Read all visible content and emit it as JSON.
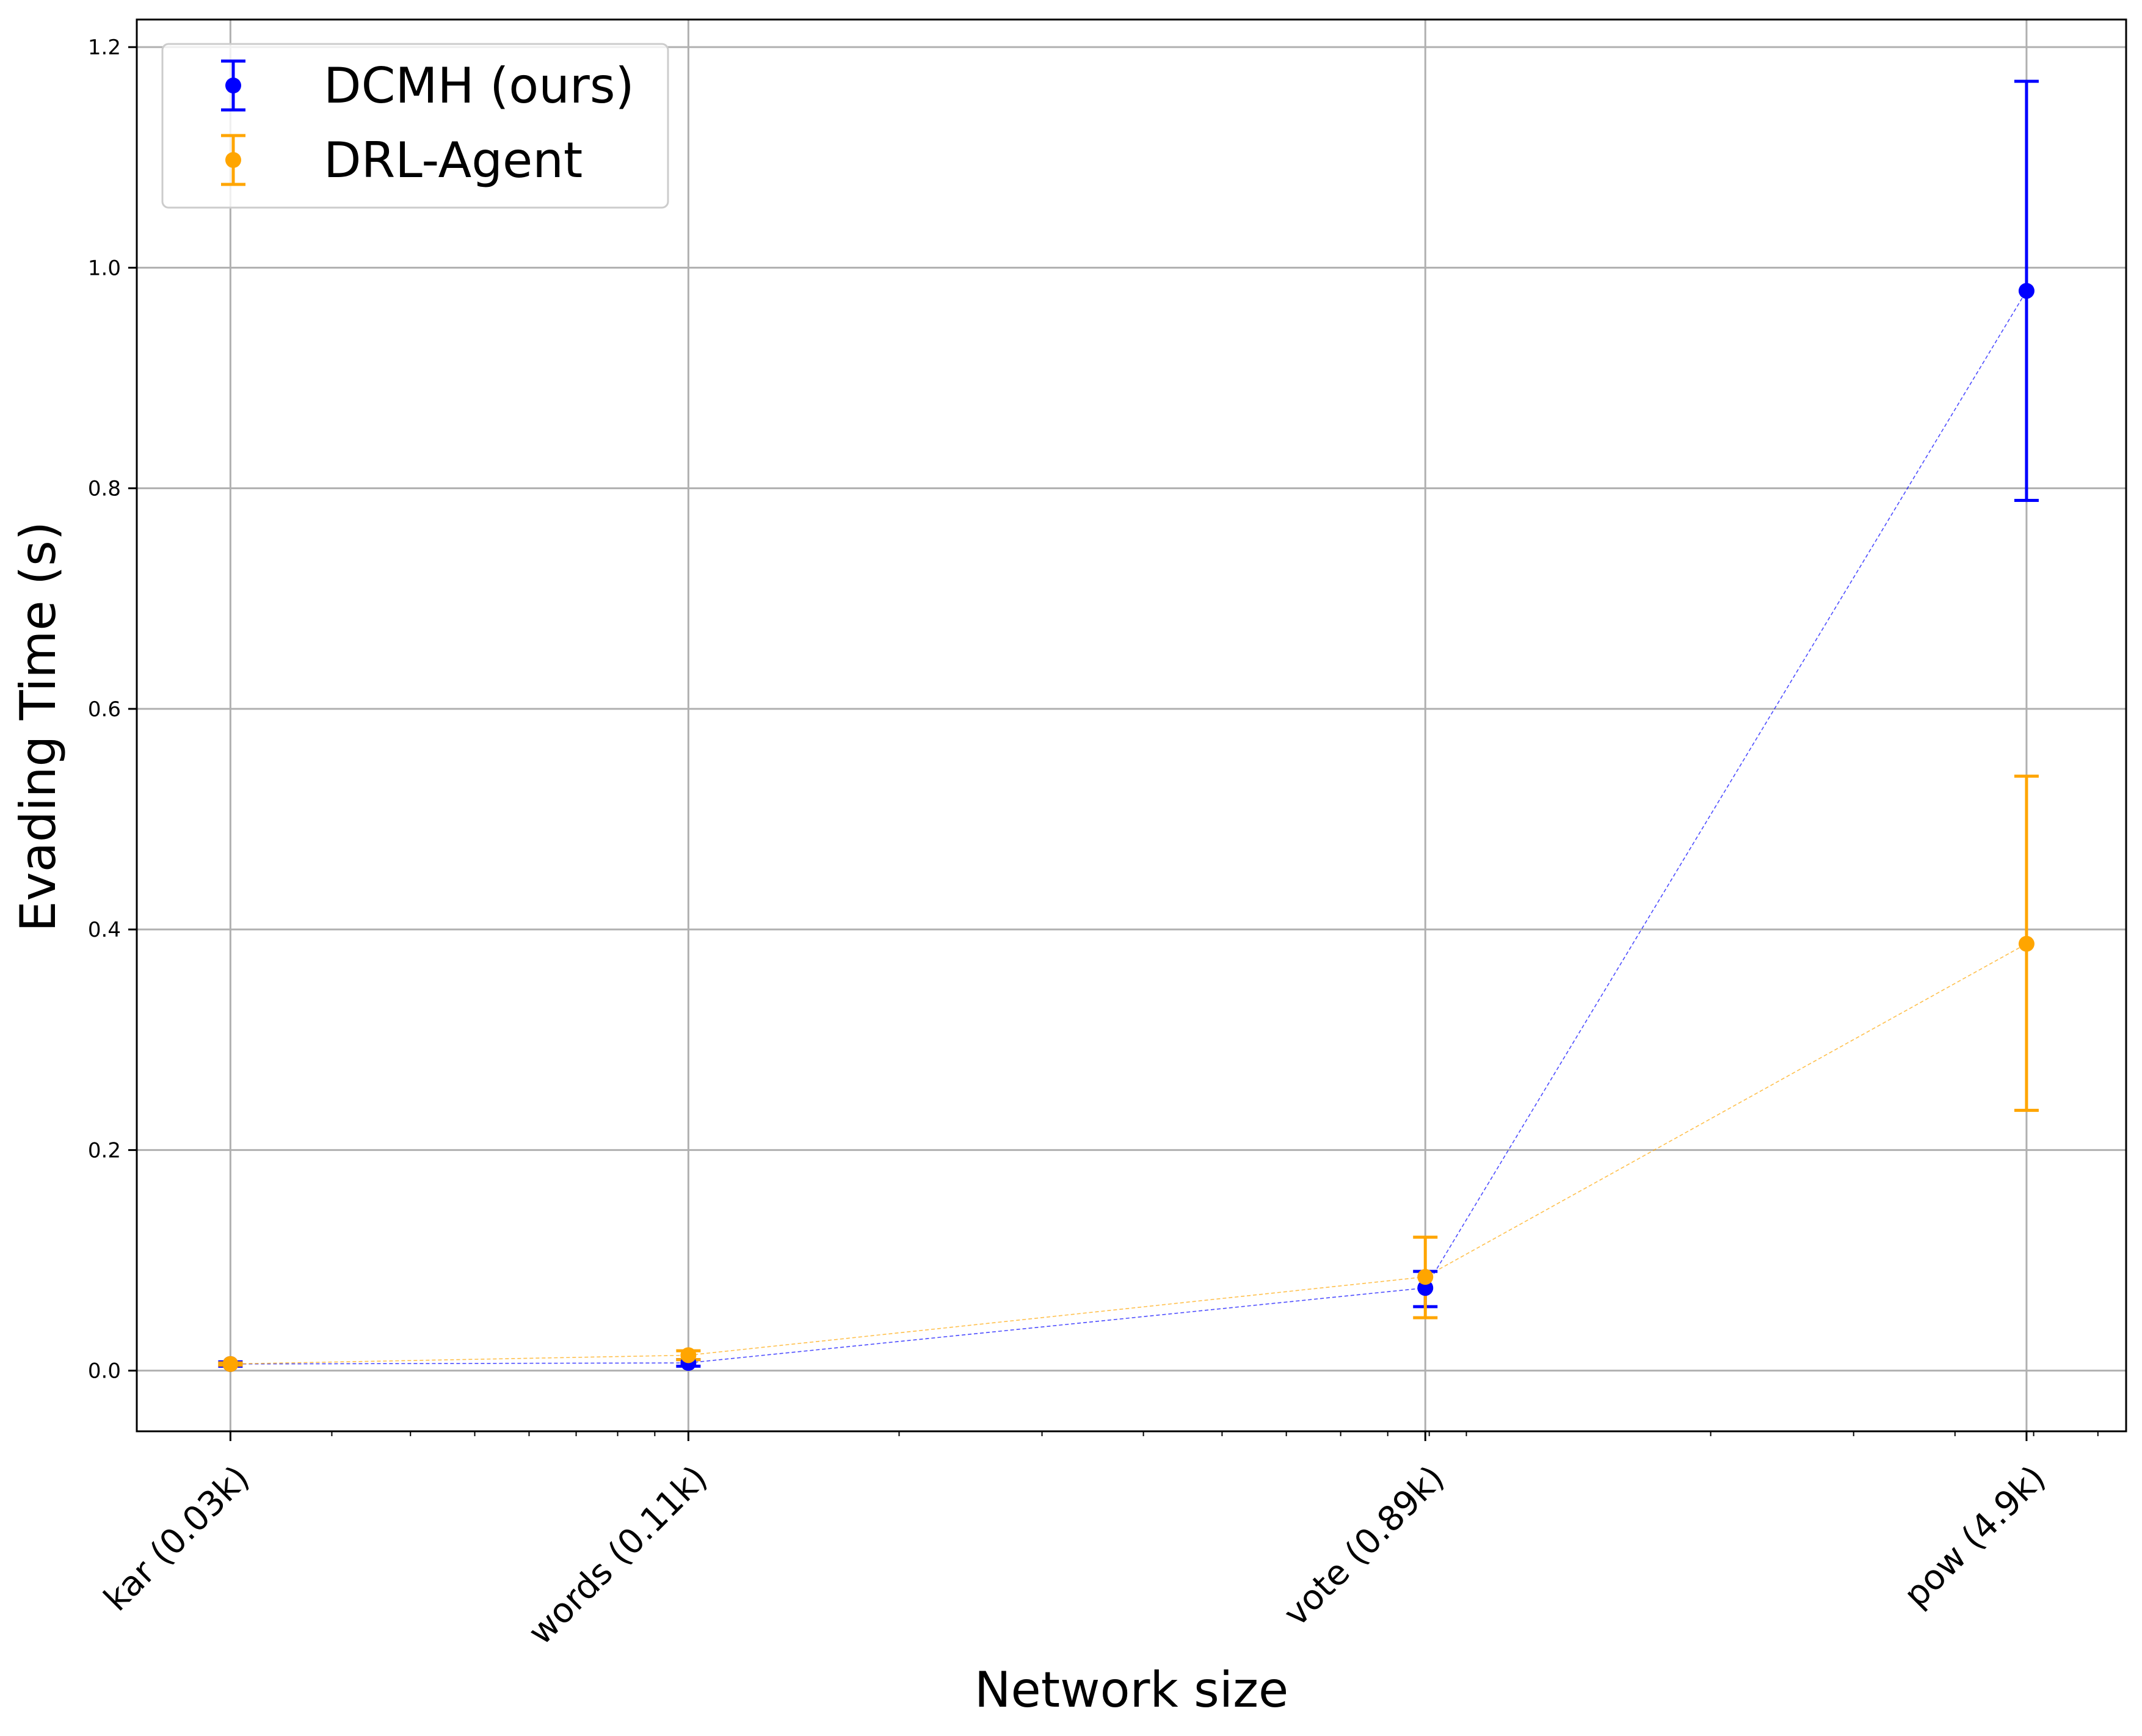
{
  "chart_data": {
    "type": "scatter",
    "title": "",
    "xlabel": "Network size",
    "ylabel": "Evading Time (s)",
    "x_scale": "log",
    "x_unit": "k nodes",
    "categories": [
      "kar (0.03k)",
      "words (0.11k)",
      "vote (0.89k)",
      "pow (4.9k)"
    ],
    "x": [
      0.03,
      0.11,
      0.89,
      4.9
    ],
    "xlim": [
      0.023,
      6.5
    ],
    "ylim": [
      -0.055,
      1.225
    ],
    "yticks": [
      "0.0",
      "0.2",
      "0.4",
      "0.6",
      "0.8",
      "1.0",
      "1.2"
    ],
    "grid": true,
    "legend_position": "top-left",
    "series": [
      {
        "name": "DCMH (ours)",
        "color": "#0000ff",
        "values": [
          0.006,
          0.007,
          0.075,
          0.979
        ],
        "yerr_low": [
          0.004,
          0.004,
          0.058,
          0.789
        ],
        "yerr_high": [
          0.008,
          0.01,
          0.09,
          1.169
        ]
      },
      {
        "name": "DRL-Agent",
        "color": "#ffa500",
        "values": [
          0.006,
          0.014,
          0.085,
          0.387
        ],
        "yerr_low": [
          0.005,
          0.01,
          0.048,
          0.236
        ],
        "yerr_high": [
          0.007,
          0.018,
          0.121,
          0.539
        ]
      }
    ]
  }
}
